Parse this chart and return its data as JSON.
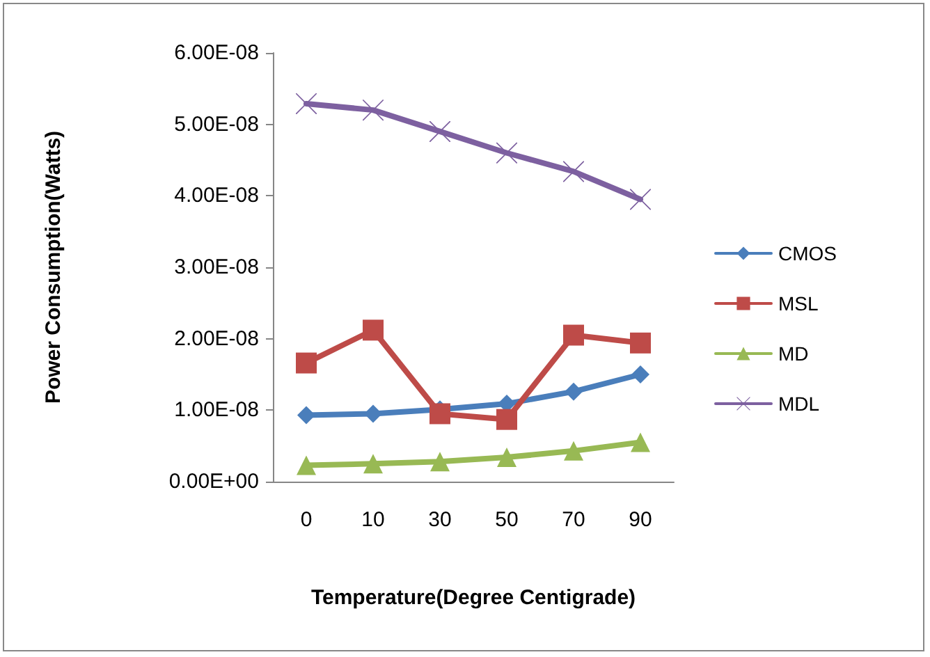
{
  "chart_data": {
    "type": "line",
    "xlabel": "Temperature(Degree Centigrade)",
    "ylabel": "Power Consumption(Watts)",
    "categories": [
      "0",
      "10",
      "30",
      "50",
      "70",
      "90"
    ],
    "ylim": [
      0,
      6e-08
    ],
    "yticks": [
      {
        "value": 0,
        "label": "0.00E+00"
      },
      {
        "value": 1e-08,
        "label": "1.00E-08"
      },
      {
        "value": 2e-08,
        "label": "2.00E-08"
      },
      {
        "value": 3e-08,
        "label": "3.00E-08"
      },
      {
        "value": 4e-08,
        "label": "4.00E-08"
      },
      {
        "value": 5e-08,
        "label": "5.00E-08"
      },
      {
        "value": 6e-08,
        "label": "6.00E-08"
      }
    ],
    "grid": false,
    "legend": "right",
    "series": [
      {
        "name": "CMOS",
        "color": "#4a7ebb",
        "marker": "diamond",
        "values": [
          9.3e-09,
          9.5e-09,
          1.01e-08,
          1.09e-08,
          1.26e-08,
          1.5e-08
        ]
      },
      {
        "name": "MSL",
        "color": "#be4b48",
        "marker": "square",
        "values": [
          1.66e-08,
          2.12e-08,
          9.5e-09,
          8.7e-09,
          2.05e-08,
          1.94e-08
        ]
      },
      {
        "name": "MD",
        "color": "#98b954",
        "marker": "triangle",
        "values": [
          2.3e-09,
          2.5e-09,
          2.8e-09,
          3.4e-09,
          4.3e-09,
          5.5e-09
        ]
      },
      {
        "name": "MDL",
        "color": "#7d60a0",
        "marker": "cross",
        "values": [
          5.29e-08,
          5.2e-08,
          4.9e-08,
          4.6e-08,
          4.34e-08,
          3.95e-08
        ]
      }
    ]
  }
}
